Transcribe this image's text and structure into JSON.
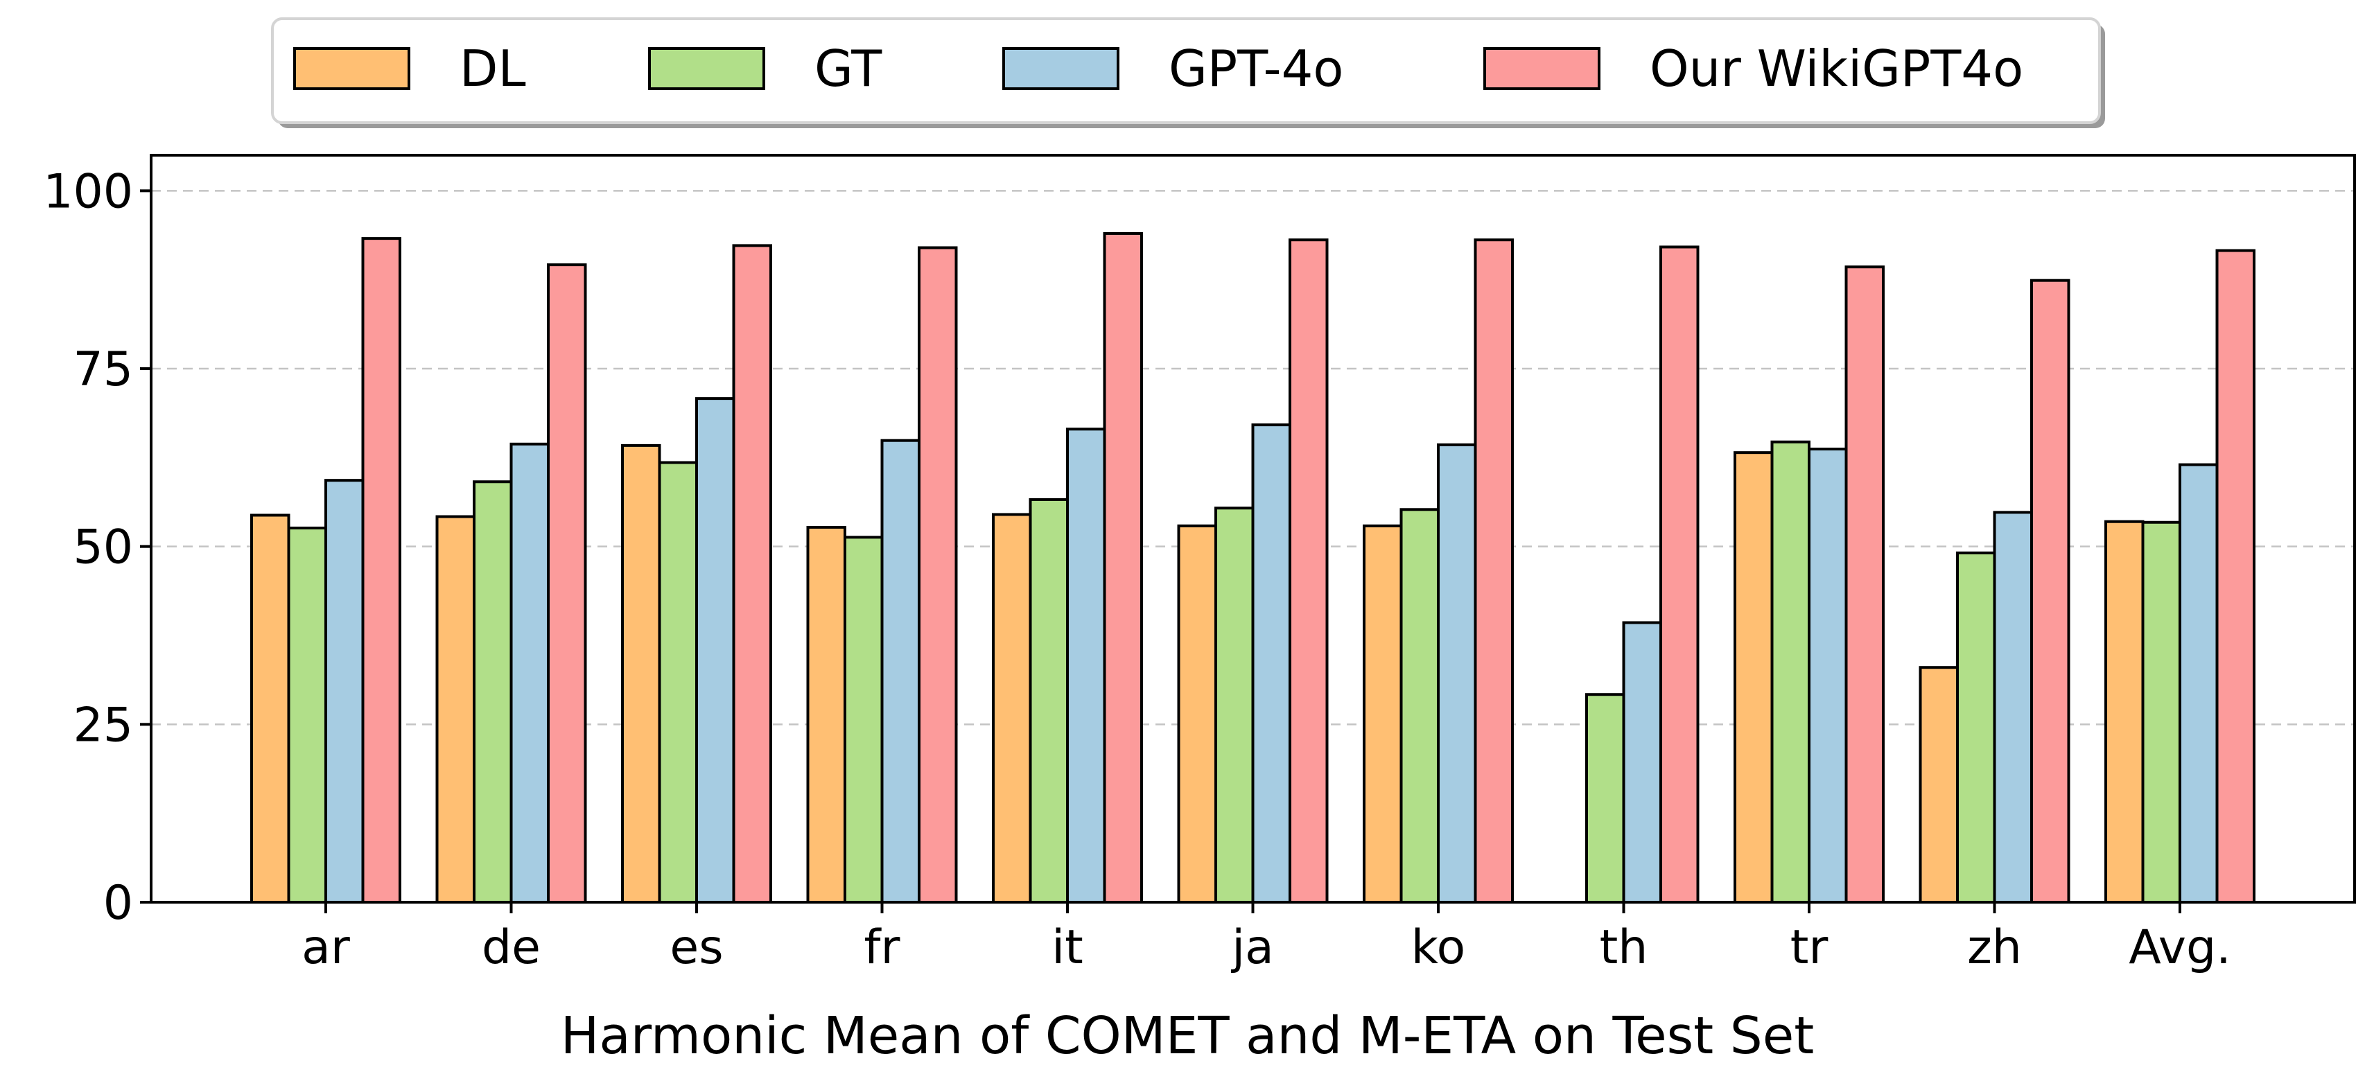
{
  "chart_data": {
    "type": "bar",
    "title": "",
    "xlabel": "Harmonic Mean of COMET and M-ETA on Test Set",
    "ylabel": "",
    "categories": [
      "ar",
      "de",
      "es",
      "fr",
      "it",
      "ja",
      "ko",
      "th",
      "tr",
      "zh",
      "Avg."
    ],
    "ylim": [
      0,
      105
    ],
    "yticks": [
      0,
      25,
      50,
      75,
      100
    ],
    "grid": "y-dashed",
    "legend": {
      "placement": "top-center",
      "frame": true,
      "shadow": true
    },
    "series": [
      {
        "name": "DL",
        "color": "#FFBF73",
        "values": [
          54.4,
          54.2,
          64.2,
          52.7,
          54.5,
          52.9,
          52.9,
          0,
          63.2,
          33.0,
          53.5
        ]
      },
      {
        "name": "GT",
        "color": "#B1DF89",
        "values": [
          52.6,
          59.1,
          61.8,
          51.3,
          56.6,
          55.4,
          55.2,
          29.2,
          64.7,
          49.1,
          53.4
        ]
      },
      {
        "name": "GPT-4o",
        "color": "#A6CCE2",
        "values": [
          59.3,
          64.4,
          70.8,
          64.9,
          66.5,
          67.1,
          64.3,
          39.3,
          63.7,
          54.8,
          61.5
        ]
      },
      {
        "name": "Our WikiGPT4o",
        "color": "#FC9B9B",
        "values": [
          93.3,
          89.6,
          92.3,
          92.0,
          94.0,
          93.1,
          93.1,
          92.1,
          89.3,
          87.4,
          91.6
        ]
      }
    ]
  }
}
